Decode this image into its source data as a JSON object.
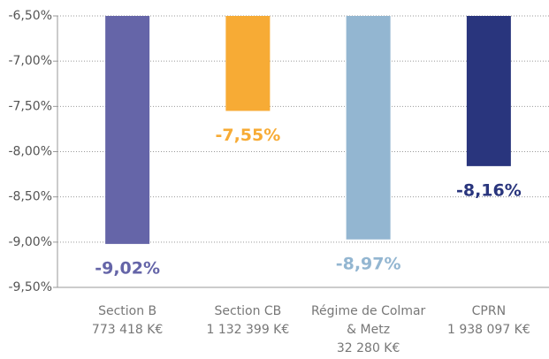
{
  "chart_data": {
    "type": "bar",
    "categories": [
      [
        "Section B",
        "773 418 K€"
      ],
      [
        "Section CB",
        "1 132 399 K€"
      ],
      [
        "Régime de Colmar",
        "& Metz",
        "32 280 K€"
      ],
      [
        "CPRN",
        "1 938 097 K€"
      ]
    ],
    "values": [
      -9.02,
      -7.55,
      -8.97,
      -8.16
    ],
    "value_labels": [
      "-9,02%",
      "-7,55%",
      "-8,97%",
      "-8,16%"
    ],
    "colors": [
      "#6565a8",
      "#f7ab35",
      "#93b6d1",
      "#29357d"
    ],
    "ylim": [
      -9.5,
      -6.5
    ],
    "yticks": [
      {
        "value": -6.5,
        "label": "-6,50%"
      },
      {
        "value": -7,
        "label": "-7,00%"
      },
      {
        "value": -7.5,
        "label": "-7,50%"
      },
      {
        "value": -8,
        "label": "-8,00%"
      },
      {
        "value": -8.5,
        "label": "-8,50%"
      },
      {
        "value": -9,
        "label": "-9,00%"
      },
      {
        "value": -9.5,
        "label": "-9,50%"
      }
    ],
    "grid": true
  }
}
